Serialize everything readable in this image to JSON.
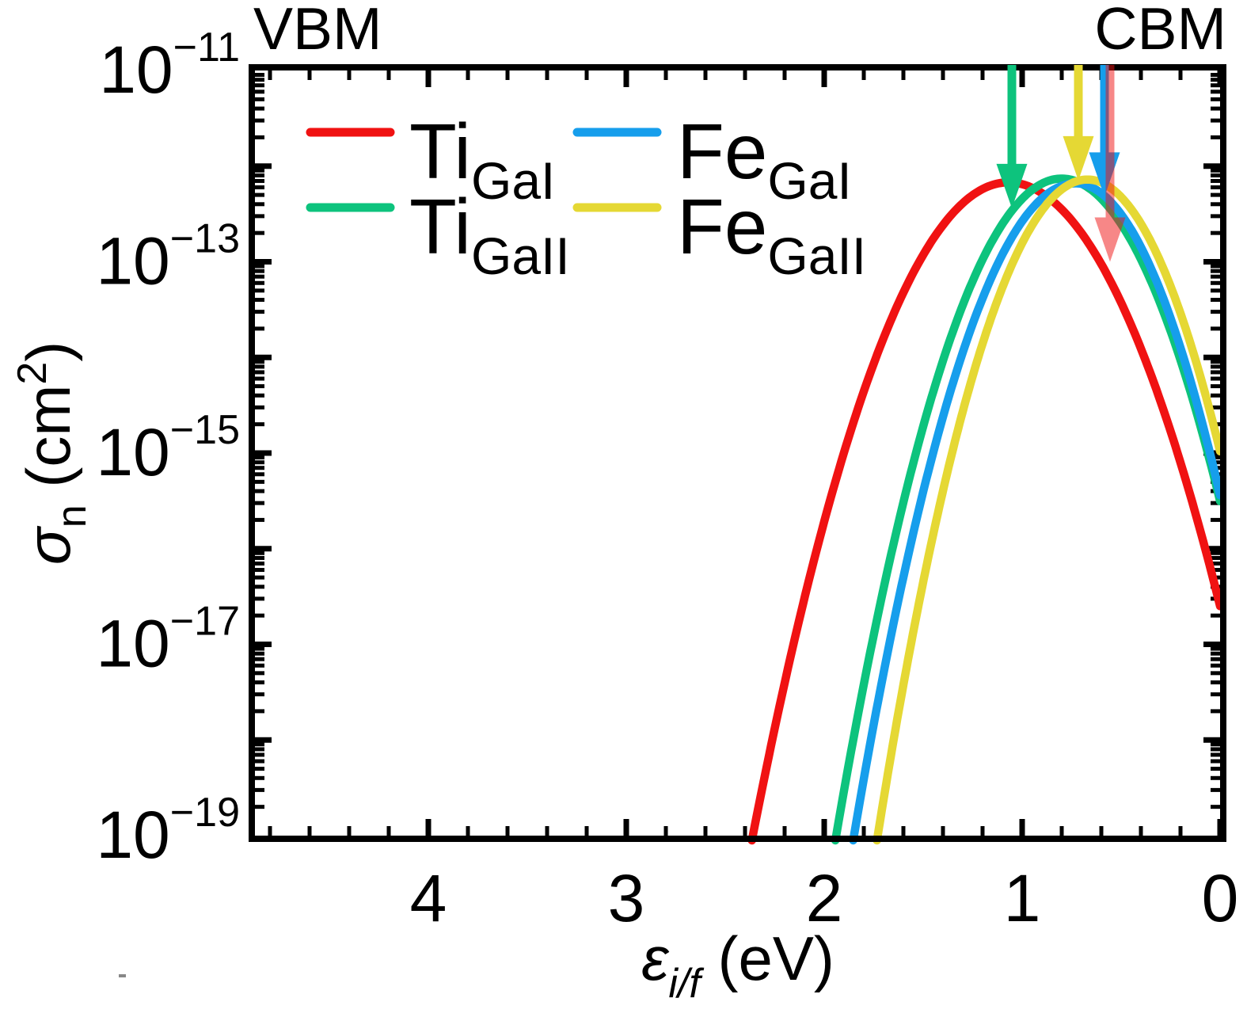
{
  "band_labels": {
    "left": "VBM",
    "right": "CBM"
  },
  "axes": {
    "x": {
      "title_symbol": "ε",
      "title_subscript": "i/f",
      "title_unit": " (eV)",
      "tick_labels": [
        "4",
        "3",
        "2",
        "1",
        "0"
      ],
      "tick_values": [
        4,
        3,
        2,
        1,
        0
      ],
      "minor_tick_step_eV": 0.2,
      "range_eV": [
        4.875,
        0
      ],
      "direction": "reversed: VBM at left edge, CBM at right edge"
    },
    "y": {
      "title_symbol": "σ",
      "title_subscript": "n",
      "title_unit_open": " (cm",
      "title_superscript": "2",
      "title_unit_close": ")",
      "scale": "log10",
      "tick_base": "10",
      "labeled_exponents": [
        -11,
        -13,
        -15,
        -17,
        -19
      ],
      "tick_exponent_labels": [
        "−11",
        "−13",
        "−15",
        "−17",
        "−19"
      ],
      "decade_range": [
        -19,
        -11
      ]
    }
  },
  "chart_data": {
    "type": "line",
    "xlabel": "ε_i/f (eV)",
    "ylabel": "σ_n (cm²)",
    "x_range_eV": [
      4.875,
      0
    ],
    "x_axis_reversed": true,
    "y_log10_range": [
      -19,
      -11
    ],
    "grid": "off",
    "legend_position": "inside top-left, 2 columns",
    "series": [
      {
        "name": "Ti_GaI",
        "legend_main": "Ti",
        "legend_sub": "GaI",
        "color": "#F01212",
        "peak": {
          "eV": 1.07,
          "log10_sigma": -12.17,
          "sigma_cm2": 6.8e-13
        },
        "curvature_decades_per_eV2": {
          "vbm_side": 4.1,
          "cbm_side": 3.87
        },
        "crossing_1e-19_eV": 2.36,
        "value_at_0eV_log10": -16.6,
        "points_eV_log10": [
          [
            2.36,
            -19.0
          ],
          [
            2.0,
            -15.72
          ],
          [
            1.5,
            -12.93
          ],
          [
            1.07,
            -12.17
          ],
          [
            0.5,
            -13.43
          ],
          [
            0.0,
            -16.6
          ]
        ],
        "arrow": {
          "eV": 0.556,
          "tip_log10_sigma": -13.0,
          "opacity": 0.5
        }
      },
      {
        "name": "Ti_GaII",
        "legend_main": "Ti",
        "legend_sub": "GaII",
        "color": "#0DC37D",
        "peak": {
          "eV": 0.8,
          "log10_sigma": -12.13,
          "sigma_cm2": 7.4e-13
        },
        "curvature_decades_per_eV2": {
          "vbm_side": 5.29,
          "cbm_side": 5.27
        },
        "crossing_1e-19_eV": 1.94,
        "value_at_0eV_log10": -15.5,
        "points_eV_log10": [
          [
            1.94,
            -19.0
          ],
          [
            1.5,
            -14.73
          ],
          [
            1.0,
            -12.34
          ],
          [
            0.8,
            -12.13
          ],
          [
            0.5,
            -12.6
          ],
          [
            0.25,
            -13.73
          ],
          [
            0.0,
            -15.5
          ]
        ],
        "arrow": {
          "eV": 1.052,
          "tip_log10_sigma": -12.44,
          "opacity": 1
        }
      },
      {
        "name": "Fe_GaI",
        "legend_main": "Fe",
        "legend_sub": "GaI",
        "color": "#169EEC",
        "peak": {
          "eV": 0.73,
          "log10_sigma": -12.18,
          "sigma_cm2": 6.6e-13
        },
        "curvature_decades_per_eV2": {
          "vbm_side": 5.44,
          "cbm_side": 6.12
        },
        "crossing_1e-19_eV": 1.85,
        "value_at_0eV_log10": -15.44,
        "points_eV_log10": [
          [
            1.85,
            -19.0
          ],
          [
            1.5,
            -15.4
          ],
          [
            1.0,
            -12.58
          ],
          [
            0.73,
            -12.18
          ],
          [
            0.5,
            -12.5
          ],
          [
            0.0,
            -15.44
          ]
        ],
        "arrow": {
          "eV": 0.584,
          "tip_log10_sigma": -12.32,
          "opacity": 1
        }
      },
      {
        "name": "Fe_GaII",
        "legend_main": "Fe",
        "legend_sub": "GaII",
        "color": "#E5D834",
        "peak": {
          "eV": 0.67,
          "log10_sigma": -12.14,
          "sigma_cm2": 7.2e-13
        },
        "curvature_decades_per_eV2": {
          "vbm_side": 6.11,
          "cbm_side": 6.33
        },
        "crossing_1e-19_eV": 1.73,
        "value_at_0eV_log10": -14.98,
        "points_eV_log10": [
          [
            1.73,
            -19.0
          ],
          [
            1.5,
            -16.35
          ],
          [
            1.0,
            -12.8
          ],
          [
            0.67,
            -12.14
          ],
          [
            0.5,
            -12.32
          ],
          [
            0.0,
            -14.98
          ]
        ],
        "arrow": {
          "eV": 0.716,
          "tip_log10_sigma": -12.15,
          "opacity": 1
        }
      }
    ]
  }
}
